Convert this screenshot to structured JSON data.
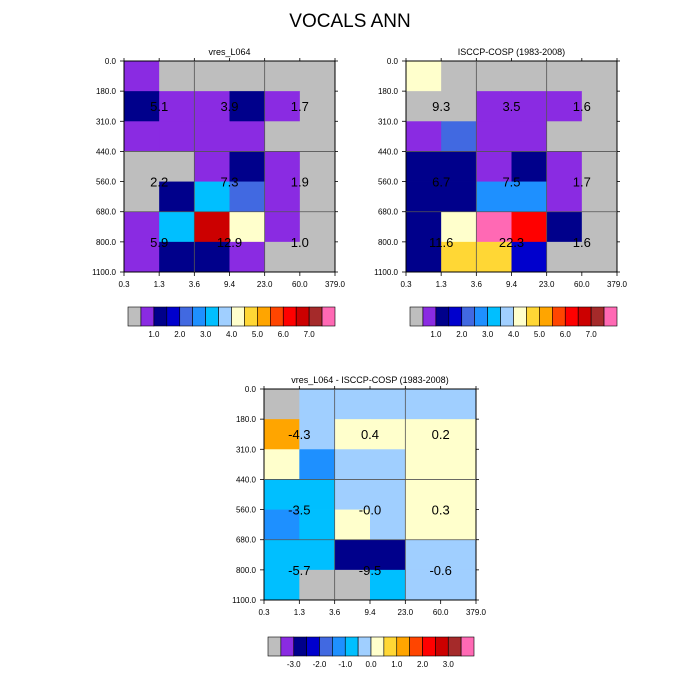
{
  "figure_title": "VOCALS ANN",
  "colors": {
    "base_palette": [
      "#bebebe",
      "#8a2be2",
      "#00008b",
      "#0000cd",
      "#4169e1",
      "#1e90ff",
      "#00bfff",
      "#a0cfff",
      "#ffffcc",
      "#ffd735",
      "#ffa500",
      "#ff4500",
      "#ff0000",
      "#cc0000",
      "#a52a2a",
      "#ff69b4"
    ],
    "diff_palette": [
      "#bebebe",
      "#8a2be2",
      "#00008b",
      "#0000cd",
      "#4169e1",
      "#1e90ff",
      "#00bfff",
      "#a0cfff",
      "#ffffcc",
      "#ffd735",
      "#ffa500",
      "#ff4500",
      "#ff0000",
      "#cc0000",
      "#a52a2a",
      "#ff69b4"
    ]
  },
  "chart_data": [
    {
      "type": "heatmap",
      "title": "vres_L064",
      "x_tick_labels": [
        "0.3",
        "1.3",
        "3.6",
        "9.4",
        "23.0",
        "60.0",
        "379.0"
      ],
      "y_tick_labels": [
        "0.0",
        "180.0",
        "310.0",
        "440.0",
        "560.0",
        "680.0",
        "800.0",
        "1100.0"
      ],
      "colorbar_labels": [
        "1.0",
        "2.0",
        "3.0",
        "4.0",
        "5.0",
        "6.0",
        "7.0"
      ],
      "cell_color_index": [
        [
          1,
          0,
          0,
          0,
          0,
          0
        ],
        [
          2,
          1,
          1,
          2,
          1,
          0
        ],
        [
          1,
          1,
          1,
          1,
          0,
          0
        ],
        [
          0,
          0,
          1,
          2,
          1,
          0
        ],
        [
          0,
          2,
          6,
          4,
          1,
          0
        ],
        [
          1,
          6,
          13,
          8,
          1,
          0
        ],
        [
          1,
          2,
          2,
          1,
          0,
          0
        ]
      ],
      "annotations": [
        "5.1",
        "3.9",
        "1.7",
        "2.2",
        "7.3",
        "1.9",
        "5.9",
        "12.9",
        "1.0"
      ]
    },
    {
      "type": "heatmap",
      "title": "ISCCP-COSP (1983-2008)",
      "x_tick_labels": [
        "0.3",
        "1.3",
        "3.6",
        "9.4",
        "23.0",
        "60.0",
        "379.0"
      ],
      "y_tick_labels": [
        "0.0",
        "180.0",
        "310.0",
        "440.0",
        "560.0",
        "680.0",
        "800.0",
        "1100.0"
      ],
      "colorbar_labels": [
        "1.0",
        "2.0",
        "3.0",
        "4.0",
        "5.0",
        "6.0",
        "7.0"
      ],
      "cell_color_index": [
        [
          8,
          0,
          0,
          0,
          0,
          0
        ],
        [
          0,
          0,
          1,
          1,
          1,
          0
        ],
        [
          1,
          4,
          1,
          1,
          0,
          0
        ],
        [
          2,
          2,
          1,
          2,
          1,
          0
        ],
        [
          2,
          2,
          5,
          5,
          1,
          0
        ],
        [
          2,
          8,
          15,
          12,
          2,
          0
        ],
        [
          2,
          9,
          9,
          3,
          0,
          0
        ]
      ],
      "annotations": [
        "9.3",
        "3.5",
        "1.6",
        "6.7",
        "7.5",
        "1.7",
        "11.6",
        "22.3",
        "1.6"
      ]
    },
    {
      "type": "heatmap",
      "title": "vres_L064 - ISCCP-COSP (1983-2008)",
      "x_tick_labels": [
        "0.3",
        "1.3",
        "3.6",
        "9.4",
        "23.0",
        "60.0",
        "379.0"
      ],
      "y_tick_labels": [
        "0.0",
        "180.0",
        "310.0",
        "440.0",
        "560.0",
        "680.0",
        "800.0",
        "1100.0"
      ],
      "colorbar_labels": [
        "-3.0",
        "-2.0",
        "-1.0",
        "0.0",
        "1.0",
        "2.0",
        "3.0"
      ],
      "cell_color_index": [
        [
          0,
          7,
          7,
          7,
          7,
          7
        ],
        [
          10,
          7,
          8,
          8,
          8,
          8
        ],
        [
          8,
          5,
          7,
          7,
          8,
          8
        ],
        [
          6,
          6,
          7,
          7,
          8,
          8
        ],
        [
          5,
          6,
          8,
          7,
          8,
          8
        ],
        [
          6,
          6,
          2,
          2,
          7,
          7
        ],
        [
          6,
          0,
          0,
          6,
          7,
          7
        ]
      ],
      "annotations": [
        "-4.3",
        "0.4",
        "0.2",
        "-3.5",
        "-0.0",
        "0.3",
        "-5.7",
        "-9.5",
        "-0.6"
      ]
    }
  ]
}
